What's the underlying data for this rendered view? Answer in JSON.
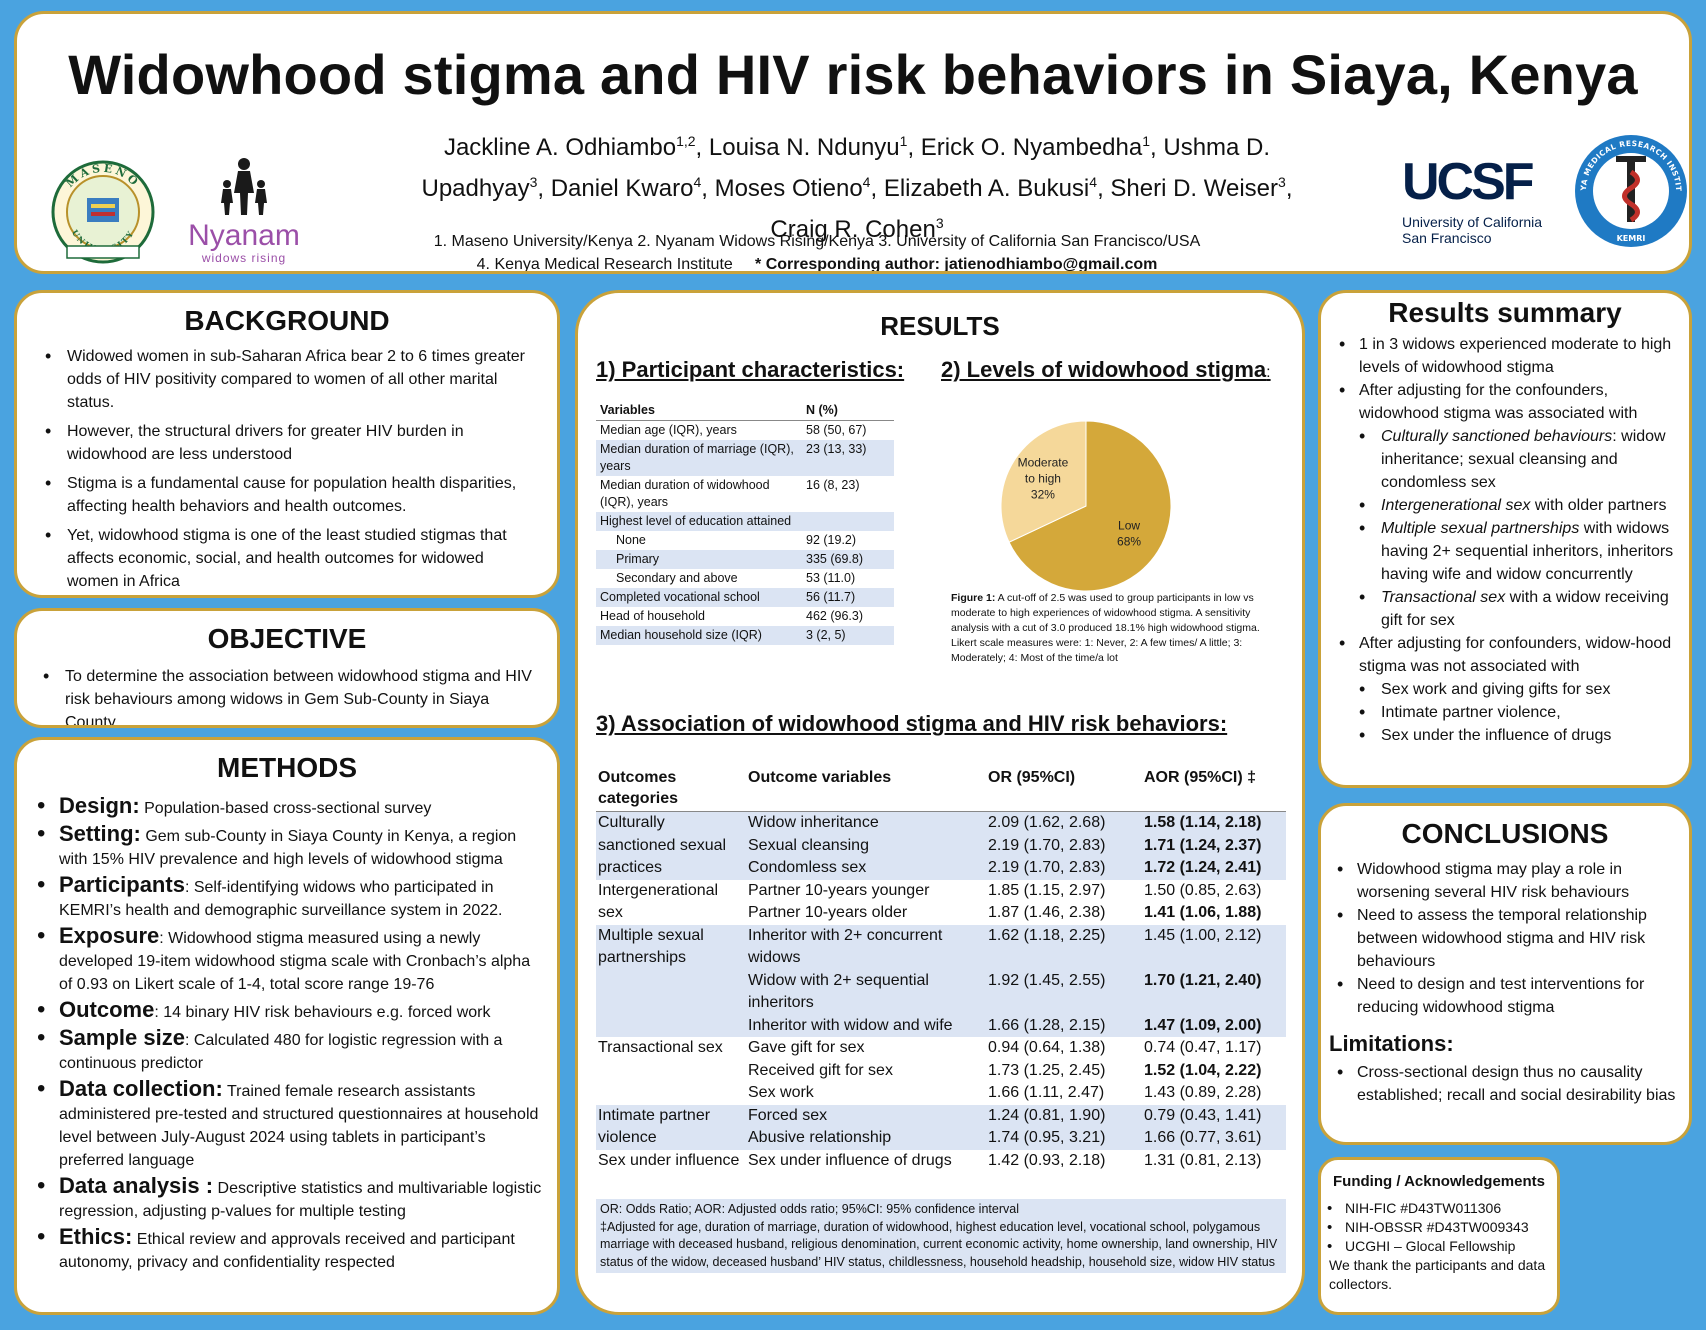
{
  "header": {
    "title": "Widowhood stigma and HIV risk behaviors in Siaya, Kenya",
    "authors": [
      {
        "name": "Jackline A. Odhiambo",
        "aff": "1,2"
      },
      {
        "name": "Louisa N. Ndunyu",
        "aff": "1"
      },
      {
        "name": "Erick O. Nyambedha",
        "aff": "1"
      },
      {
        "name": "Ushma D. Upadhyay",
        "aff": "3"
      },
      {
        "name": "Daniel Kwaro",
        "aff": "4"
      },
      {
        "name": "Moses Otieno",
        "aff": "4"
      },
      {
        "name": "Elizabeth A. Bukusi",
        "aff": "4"
      },
      {
        "name": "Sheri D. Weiser",
        "aff": "3"
      },
      {
        "name": "Craig R. Cohen",
        "aff": "3"
      }
    ],
    "affiliations_line1": "1.    Maseno University/Kenya 2. Nyanam Widows Rising/Kenya 3. University of California San Francisco/USA",
    "affiliations_line2": "4. Kenya Medical Research Institute",
    "corresponding_label": "* Corresponding author:",
    "corresponding_email": "jatienodhiambo@gmail.com",
    "logos": {
      "maseno_top": "MASENO",
      "maseno_bottom": "UNIVERSITY",
      "nyanam_name": "Nyanam",
      "nyanam_tag": "widows rising",
      "ucsf_mark": "UCSF",
      "ucsf_line1": "University of California",
      "ucsf_line2": "San Francisco",
      "kemri_ring": "KENYA MEDICAL RESEARCH INSTITUTE",
      "kemri_abbr": "KEMRI"
    }
  },
  "background": {
    "title": "BACKGROUND",
    "items": [
      "Widowed women in sub-Saharan Africa bear 2 to 6 times greater odds of HIV positivity compared to women of all other marital status.",
      "However, the structural drivers for greater HIV burden in widowhood are less understood",
      "Stigma is a fundamental cause for population health disparities, affecting health behaviors and health outcomes.",
      "Yet, widowhood stigma is one of the least studied stigmas that affects economic, social, and health outcomes for widowed women in Africa"
    ]
  },
  "objective": {
    "title": "OBJECTIVE",
    "items": [
      "To determine the association between widowhood stigma and HIV risk behaviours among widows in Gem Sub-County in Siaya County"
    ]
  },
  "methods": {
    "title": "METHODS",
    "items": [
      {
        "term": "Design:",
        "text": " Population-based cross-sectional survey"
      },
      {
        "term": "Setting:",
        "text": " Gem sub-County in Siaya County in Kenya, a region with 15% HIV prevalence and high levels of widowhood stigma"
      },
      {
        "term": "Participants",
        "text": ": Self-identifying widows who participated in KEMRI’s health and demographic surveillance system in 2022."
      },
      {
        "term": "Exposure",
        "text": ": Widowhood stigma measured using a newly developed 19-item widowhood stigma scale with Cronbach’s alpha of 0.93 on Likert scale of 1-4, total score range 19-76"
      },
      {
        "term": "Outcome",
        "text": ": 14 binary HIV risk behaviours e.g. forced work"
      },
      {
        "term": "Sample size",
        "text": ": Calculated 480 for logistic regression with a continuous predictor"
      },
      {
        "term": "Data collection:",
        "text": " Trained female research assistants administered pre-tested and structured questionnaires at household level between July-August 2024 using tablets in participant’s preferred language"
      },
      {
        "term": "Data analysis :",
        "text": " Descriptive statistics and multivariable logistic regression, adjusting p-values for multiple testing"
      },
      {
        "term": "Ethics:",
        "text": " Ethical review and approvals received and participant autonomy, privacy and confidentiality respected"
      }
    ]
  },
  "results": {
    "title": "RESULTS",
    "sub1": "1) Participant characteristics:",
    "sub2": "2) Levels of widowhood stigma",
    "sub2_suffix": ":",
    "sub3": "3) Association of widowhood stigma and HIV risk behaviors:",
    "participant_table": {
      "headers": [
        "Variables",
        "N (%)"
      ],
      "rows": [
        {
          "label": "Median age (IQR), years",
          "value": "58 (50, 67)",
          "indent": false
        },
        {
          "label": "Median duration of marriage (IQR), years",
          "value": "23 (13, 33)",
          "indent": false
        },
        {
          "label": "Median duration of widowhood (IQR), years",
          "value": "16 (8, 23)",
          "indent": false
        },
        {
          "label": "Highest level of education attained",
          "value": "",
          "indent": false
        },
        {
          "label": "None",
          "value": "92 (19.2)",
          "indent": true
        },
        {
          "label": "Primary",
          "value": "335 (69.8)",
          "indent": true
        },
        {
          "label": "Secondary and above",
          "value": "53 (11.0)",
          "indent": true
        },
        {
          "label": "Completed vocational school",
          "value": "56 (11.7)",
          "indent": false
        },
        {
          "label": "Head of household",
          "value": "462 (96.3)",
          "indent": false
        },
        {
          "label": "Median household size (IQR)",
          "value": "3 (2, 5)",
          "indent": false
        }
      ]
    },
    "figure_caption_label": "Figure 1:",
    "figure_caption": " A cut-off of 2.5 was used to group participants in low vs moderate to high experiences of widowhood stigma. A sensitivity analysis with a cut of 3.0 produced 18.1% high widowhood stigma. Likert scale measures were: 1: Never, 2: A few times/ A little; 3: Moderately; 4: Most of the time/a lot",
    "assoc_table": {
      "headers": [
        "Outcomes categories",
        "Outcome variables",
        "OR (95%CI)",
        "AOR (95%CI) ‡"
      ],
      "groups": [
        {
          "category": "Culturally sanctioned sexual practices",
          "band": true,
          "rows": [
            {
              "var": "Widow inheritance",
              "or": "2.09 (1.62, 2.68)",
              "aor": "1.58 (1.14, 2.18)",
              "sig": true
            },
            {
              "var": "Sexual cleansing",
              "or": "2.19 (1.70, 2.83)",
              "aor": "1.71 (1.24, 2.37)",
              "sig": true
            },
            {
              "var": "Condomless sex",
              "or": "2.19 (1.70, 2.83)",
              "aor": "1.72 (1.24, 2.41)",
              "sig": true
            }
          ]
        },
        {
          "category": "Intergenerational sex",
          "band": false,
          "rows": [
            {
              "var": "Partner 10-years younger",
              "or": "1.85 (1.15, 2.97)",
              "aor": "1.50 (0.85, 2.63)",
              "sig": false
            },
            {
              "var": "Partner 10-years older",
              "or": "1.87 (1.46, 2.38)",
              "aor": "1.41 (1.06, 1.88)",
              "sig": true
            }
          ]
        },
        {
          "category": "Multiple sexual partnerships",
          "band": true,
          "rows": [
            {
              "var": "Inheritor with 2+ concurrent widows",
              "or": "1.62 (1.18, 2.25)",
              "aor": "1.45 (1.00, 2.12)",
              "sig": false
            },
            {
              "var": "Widow with 2+ sequential inheritors",
              "or": "1.92 (1.45, 2.55)",
              "aor": "1.70 (1.21, 2.40)",
              "sig": true
            },
            {
              "var": "Inheritor with widow and wife",
              "or": "1.66 (1.28, 2.15)",
              "aor": "1.47 (1.09, 2.00)",
              "sig": true
            }
          ]
        },
        {
          "category": "Transactional sex",
          "band": false,
          "rows": [
            {
              "var": "Gave gift for sex",
              "or": "0.94 (0.64, 1.38)",
              "aor": "0.74 (0.47, 1.17)",
              "sig": false
            },
            {
              "var": "Received gift for sex",
              "or": "1.73 (1.25, 2.45)",
              "aor": "1.52 (1.04, 2.22)",
              "sig": true
            },
            {
              "var": "Sex work",
              "or": "1.66 (1.11, 2.47)",
              "aor": "1.43 (0.89, 2.28)",
              "sig": false
            }
          ]
        },
        {
          "category": "Intimate partner violence",
          "band": true,
          "rows": [
            {
              "var": "Forced sex",
              "or": "1.24 (0.81, 1.90)",
              "aor": "0.79 (0.43, 1.41)",
              "sig": false
            },
            {
              "var": "Abusive relationship",
              "or": "1.74 (0.95, 3.21)",
              "aor": "1.66 (0.77, 3.61)",
              "sig": false
            }
          ]
        },
        {
          "category": "Sex under influence",
          "band": false,
          "rows": [
            {
              "var": "Sex under influence of drugs",
              "or": "1.42 (0.93, 2.18)",
              "aor": "1.31 (0.81, 2.13)",
              "sig": false
            }
          ]
        }
      ]
    },
    "table_note1": "OR: Odds Ratio; AOR: Adjusted odds ratio; 95%CI: 95% confidence interval",
    "table_note2": "‡Adjusted for age, duration of marriage, duration of widowhood, highest education level, vocational school, polygamous marriage with deceased husband, religious denomination, current economic activity, home ownership, land ownership, HIV status of the widow, deceased husband’ HIV status, childlessness, household headship, household size, widow HIV status"
  },
  "chart_data": {
    "type": "pie",
    "title": "",
    "slices": [
      {
        "label": "Low",
        "value": 68,
        "display": "68%",
        "color": "#d4a83a"
      },
      {
        "label": "Moderate to high",
        "value": 32,
        "display": "32%",
        "color": "#f5d89a"
      }
    ]
  },
  "summary": {
    "title": "Results summary",
    "items": [
      {
        "level": 1,
        "italic": "",
        "text": "1 in 3 widows experienced moderate to high levels of widowhood stigma"
      },
      {
        "level": 1,
        "italic": "",
        "text": "After adjusting for the confounders, widowhood stigma was associated with"
      },
      {
        "level": 2,
        "italic": "Culturally sanctioned behaviours",
        "text": ": widow inheritance; sexual cleansing and condomless sex"
      },
      {
        "level": 2,
        "italic": "Intergenerational sex",
        "text": " with older partners"
      },
      {
        "level": 2,
        "italic": "Multiple sexual partnerships",
        "text": " with widows having 2+ sequential inheritors, inheritors having wife and widow concurrently"
      },
      {
        "level": 2,
        "italic": "Transactional sex",
        "text": " with a widow receiving gift for sex"
      },
      {
        "level": 1,
        "italic": "",
        "text": "After adjusting for confounders, widow-hood stigma was not associated with"
      },
      {
        "level": 2,
        "italic": "",
        "text": "Sex work and giving gifts for sex"
      },
      {
        "level": 2,
        "italic": "",
        "text": "Intimate partner violence,"
      },
      {
        "level": 2,
        "italic": "",
        "text": "Sex under the influence of drugs"
      }
    ]
  },
  "conclusions": {
    "title": "CONCLUSIONS",
    "items": [
      "Widowhood stigma may play a role in worsening several HIV risk behaviours",
      "Need to assess the temporal relationship between widowhood stigma and HIV risk behaviours",
      "Need to design and test interventions for reducing widowhood stigma"
    ],
    "limitations_title": "Limitations:",
    "limitations": [
      "Cross-sectional design thus no causality established; recall and social desirability bias"
    ]
  },
  "funding": {
    "title": "Funding / Acknowledgements",
    "items": [
      "NIH-FIC #D43TW011306",
      "NIH-OBSSR #D43TW009343",
      "UCGHI – Glocal Fellowship"
    ],
    "thanks": "We thank the participants and data collectors."
  }
}
